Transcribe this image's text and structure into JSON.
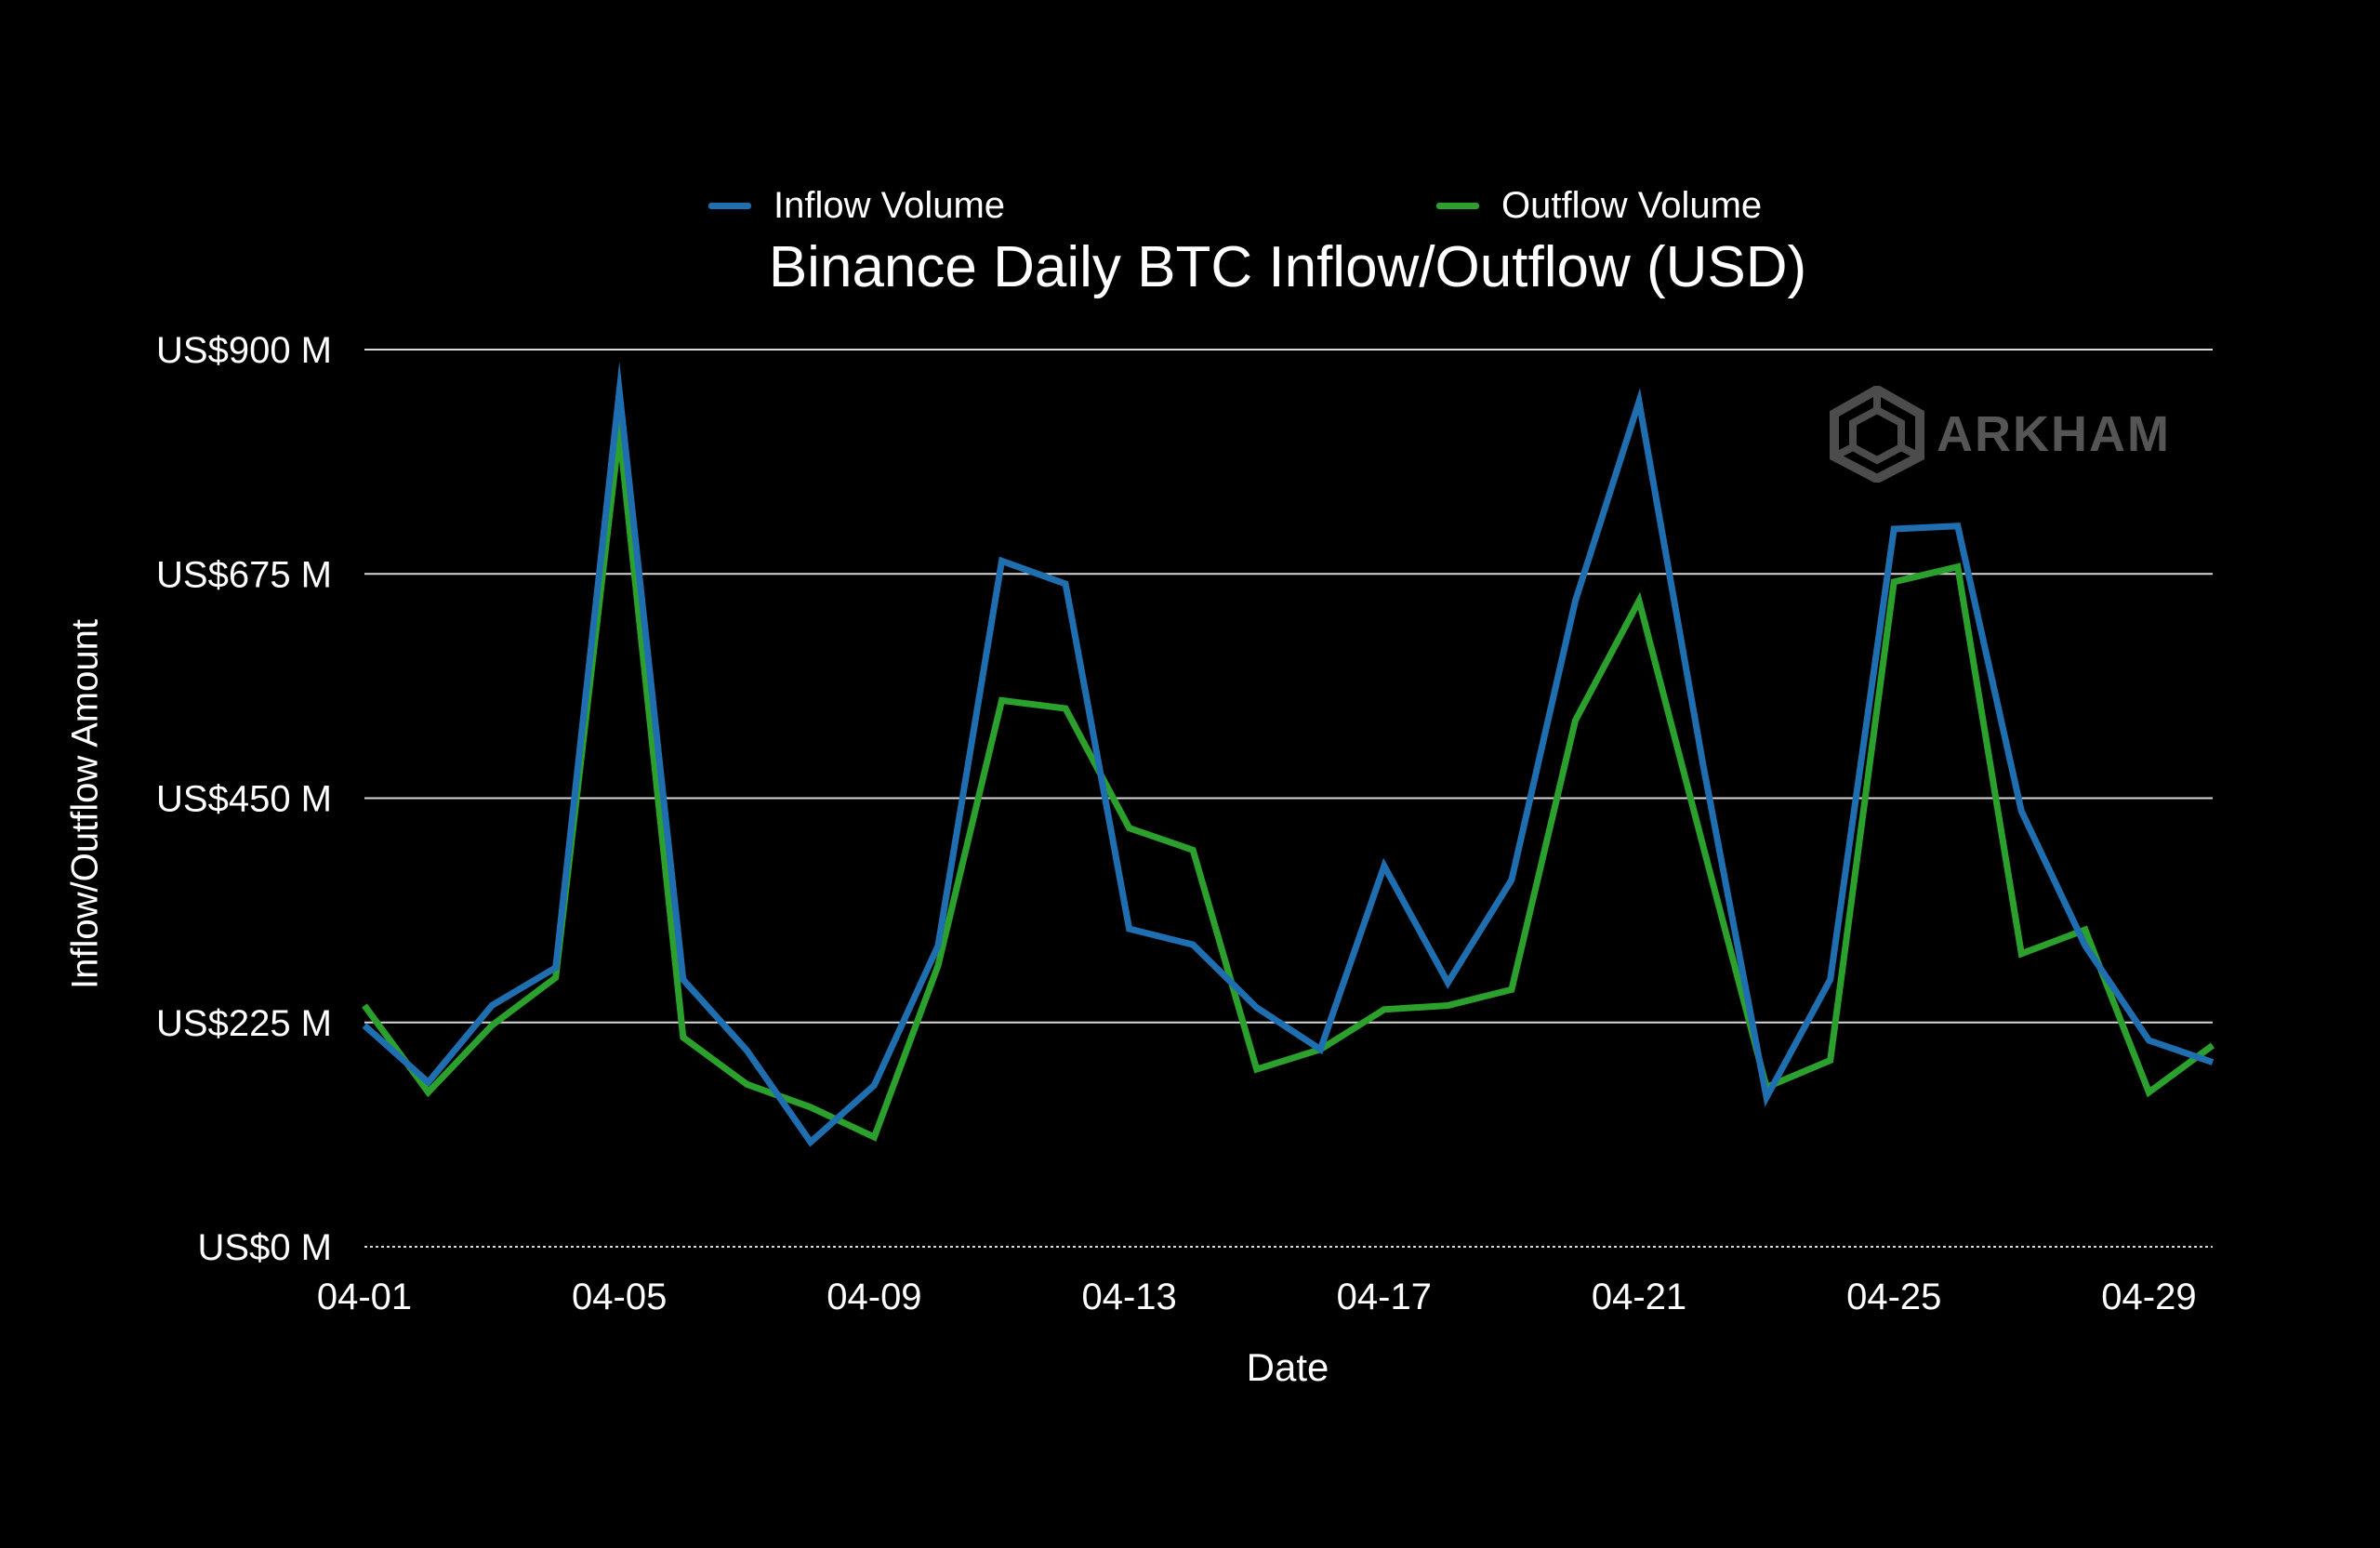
{
  "colors": {
    "background": "#000000",
    "inflow": "#1f6fb0",
    "outflow": "#2ca02c",
    "grid": "#d8d8d8",
    "text": "#ffffff"
  },
  "watermark": {
    "text": "ARKHAM",
    "icon": "arkham-logo-icon"
  },
  "chart_data": {
    "type": "line",
    "title": "Binance Daily BTC Inflow/Outflow (USD)",
    "xlabel": "Date",
    "ylabel": "Inflow/Outflow Amount",
    "ylim": [
      0,
      900
    ],
    "y_unit": "US$ M",
    "y_ticks": [
      0,
      225,
      450,
      675,
      900
    ],
    "y_tick_labels": [
      "US$0 M",
      "US$225 M",
      "US$450 M",
      "US$675 M",
      "US$900 M"
    ],
    "x_tick_labels": [
      "04-01",
      "04-05",
      "04-09",
      "04-13",
      "04-17",
      "04-21",
      "04-25",
      "04-29"
    ],
    "grid": true,
    "legend_position": "top",
    "x": [
      "04-01",
      "04-02",
      "04-03",
      "04-04",
      "04-05",
      "04-06",
      "04-07",
      "04-08",
      "04-09",
      "04-10",
      "04-11",
      "04-12",
      "04-13",
      "04-14",
      "04-15",
      "04-16",
      "04-17",
      "04-18",
      "04-19",
      "04-20",
      "04-21",
      "04-22",
      "04-23",
      "04-24",
      "04-25",
      "04-26",
      "04-27",
      "04-28",
      "04-29",
      "04-30"
    ],
    "series": [
      {
        "name": "Inflow Volume",
        "color": "#1f6fb0",
        "values": [
          222,
          165,
          242,
          280,
          858,
          268,
          197,
          105,
          162,
          302,
          688,
          665,
          319,
          303,
          240,
          198,
          382,
          265,
          368,
          648,
          848,
          485,
          150,
          268,
          720,
          723,
          437,
          302,
          207,
          185
        ]
      },
      {
        "name": "Outflow Volume",
        "color": "#2ca02c",
        "values": [
          242,
          155,
          222,
          270,
          818,
          210,
          163,
          140,
          110,
          282,
          548,
          540,
          420,
          398,
          178,
          198,
          238,
          242,
          258,
          528,
          648,
          403,
          160,
          187,
          667,
          682,
          294,
          318,
          155,
          202
        ]
      }
    ]
  }
}
